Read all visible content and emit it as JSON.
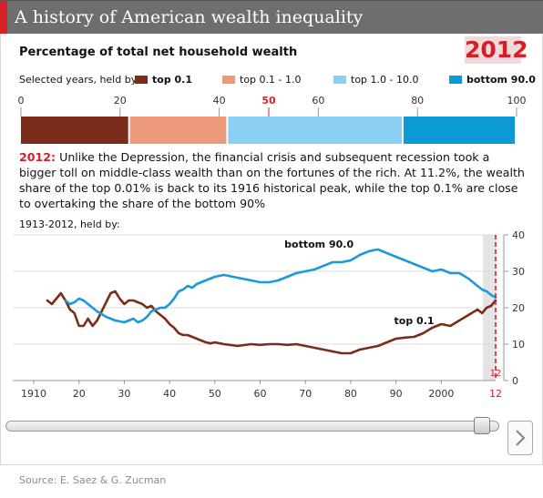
{
  "header": {
    "title": "A history of American wealth inequality"
  },
  "subtitle": "Percentage of total net household wealth",
  "selected_year": "2012",
  "legend": {
    "lead": "Selected years, held by:",
    "items": [
      {
        "label": "top 0.1",
        "color": "#7b2d1a",
        "bold": true
      },
      {
        "label": "top 0.1 - 1.0",
        "color": "#ee9a7a",
        "bold": false
      },
      {
        "label": "top 1.0 - 10.0",
        "color": "#8ccff4",
        "bold": false
      },
      {
        "label": "bottom 90.0",
        "color": "#0b9ad6",
        "bold": true
      }
    ]
  },
  "description": {
    "year": "2012:",
    "text": " Unlike the Depression, the financial crisis and subsequent recession took a bigger toll on middle-class wealth than on the fortunes of the rich. At 11.2%, the wealth share of the top 0.01% is back to its 1916 historical peak, while the top 0.1% are close to overtaking the share of the bottom 90%"
  },
  "line_heading": "1913-2012, held by:",
  "source": "Source: E. Saez & G. Zucman",
  "chart_data": [
    {
      "type": "bar",
      "orientation": "horizontal-stacked",
      "title": "Percentage of total net household wealth",
      "categories": [
        "2012"
      ],
      "x_ticks": [
        "0",
        "20",
        "40",
        "50",
        "60",
        "80",
        "100"
      ],
      "highlight_tick": "50",
      "xlim": [
        0,
        100
      ],
      "series": [
        {
          "name": "top 0.1",
          "values": [
            22.0
          ],
          "color": "#7b2d1a"
        },
        {
          "name": "top 0.1 - 1.0",
          "values": [
            19.8
          ],
          "color": "#ee9a7a"
        },
        {
          "name": "top 1.0 - 10.0",
          "values": [
            35.4
          ],
          "color": "#8ccff4"
        },
        {
          "name": "bottom 90.0",
          "values": [
            22.8
          ],
          "color": "#0b9ad6"
        }
      ]
    },
    {
      "type": "line",
      "title": "1913-2012, held by:",
      "x_ticks": [
        "1910",
        "20",
        "30",
        "40",
        "50",
        "60",
        "70",
        "80",
        "90",
        "2000",
        "12"
      ],
      "y_ticks": [
        "0",
        "10",
        "20",
        "30",
        "40"
      ],
      "xlim": [
        1910,
        2012
      ],
      "ylim": [
        0,
        40
      ],
      "y_axis_side": "right",
      "grid": true,
      "highlight_year": 2012,
      "highlight_label": "12",
      "series": [
        {
          "name": "top 0.1",
          "color": "#7b2d1a",
          "x": [
            1913,
            1914,
            1915,
            1916,
            1917,
            1918,
            1919,
            1920,
            1921,
            1922,
            1923,
            1924,
            1925,
            1926,
            1927,
            1928,
            1929,
            1930,
            1931,
            1932,
            1933,
            1934,
            1935,
            1936,
            1937,
            1938,
            1939,
            1940,
            1941,
            1942,
            1943,
            1944,
            1945,
            1946,
            1947,
            1948,
            1949,
            1950,
            1952,
            1955,
            1958,
            1960,
            1962,
            1964,
            1966,
            1968,
            1970,
            1972,
            1974,
            1976,
            1978,
            1980,
            1982,
            1984,
            1986,
            1988,
            1990,
            1992,
            1994,
            1996,
            1998,
            2000,
            2002,
            2004,
            2006,
            2008,
            2009,
            2010,
            2011,
            2012
          ],
          "y": [
            22.0,
            21.0,
            22.5,
            24.0,
            22.0,
            19.5,
            18.5,
            15.0,
            15.0,
            17.0,
            15.0,
            16.5,
            19.0,
            21.5,
            24.0,
            24.5,
            22.5,
            21.0,
            22.0,
            22.0,
            21.5,
            21.0,
            20.0,
            20.5,
            19.0,
            18.0,
            17.0,
            15.5,
            14.5,
            13.0,
            12.5,
            12.5,
            12.0,
            11.5,
            11.0,
            10.5,
            10.2,
            10.5,
            10.0,
            9.5,
            10.0,
            9.8,
            10.0,
            10.0,
            9.8,
            10.0,
            9.5,
            9.0,
            8.5,
            8.0,
            7.5,
            7.5,
            8.5,
            9.0,
            9.5,
            10.5,
            11.5,
            11.8,
            12.0,
            13.0,
            14.5,
            15.5,
            15.0,
            16.5,
            18.0,
            19.5,
            18.5,
            20.0,
            20.5,
            22.0
          ]
        },
        {
          "name": "bottom 90.0",
          "color": "#1a9bd8",
          "x": [
            1917,
            1918,
            1919,
            1920,
            1921,
            1922,
            1924,
            1926,
            1928,
            1930,
            1932,
            1933,
            1934,
            1935,
            1936,
            1937,
            1938,
            1939,
            1940,
            1941,
            1942,
            1943,
            1944,
            1945,
            1946,
            1948,
            1950,
            1952,
            1954,
            1956,
            1958,
            1960,
            1962,
            1964,
            1966,
            1968,
            1970,
            1972,
            1974,
            1976,
            1978,
            1980,
            1982,
            1984,
            1985,
            1986,
            1988,
            1990,
            1992,
            1994,
            1996,
            1998,
            2000,
            2002,
            2004,
            2006,
            2008,
            2009,
            2010,
            2011,
            2012
          ],
          "y": [
            22.0,
            21.0,
            21.5,
            22.5,
            22.0,
            21.0,
            19.0,
            17.5,
            16.5,
            16.0,
            17.0,
            16.0,
            16.5,
            17.5,
            19.0,
            19.5,
            20.0,
            20.0,
            21.0,
            22.5,
            24.5,
            25.0,
            26.0,
            25.5,
            26.5,
            27.5,
            28.5,
            29.0,
            28.5,
            28.0,
            27.5,
            27.0,
            27.0,
            27.5,
            28.5,
            29.5,
            30.0,
            30.5,
            31.5,
            32.5,
            32.5,
            33.0,
            34.5,
            35.5,
            35.8,
            36.0,
            35.0,
            34.0,
            33.0,
            32.0,
            31.0,
            30.0,
            30.5,
            29.5,
            29.5,
            28.0,
            26.0,
            25.0,
            24.5,
            23.5,
            22.8
          ]
        }
      ],
      "annotations": [
        {
          "text": "bottom 90.0",
          "series": "bottom 90.0",
          "x": 1973,
          "y": 36.5
        },
        {
          "text": "top 0.1",
          "series": "top 0.1",
          "x": 1994,
          "y": 15.5
        }
      ]
    }
  ]
}
